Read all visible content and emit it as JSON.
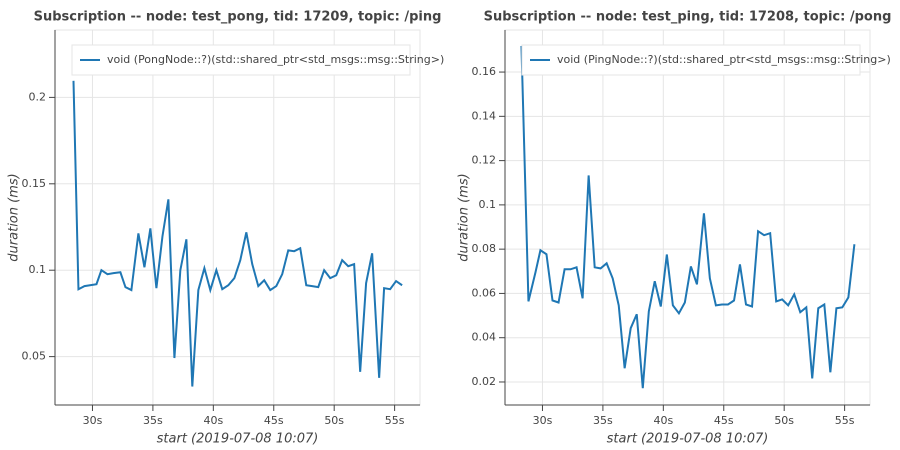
{
  "chart_data": [
    {
      "type": "line",
      "title": "Subscription -- node: test_pong, tid: 17209, topic: /ping",
      "xlabel": "start (2019-07-08 10:07)",
      "ylabel": "duration (ms)",
      "x": [
        28.43,
        28.84,
        29.34,
        30.33,
        30.74,
        31.24,
        31.74,
        32.31,
        32.73,
        33.22,
        33.8,
        34.3,
        34.79,
        35.29,
        35.79,
        36.28,
        36.78,
        37.27,
        37.77,
        38.26,
        38.76,
        39.26,
        39.75,
        40.25,
        40.74,
        41.24,
        41.74,
        42.23,
        42.73,
        43.22,
        43.72,
        44.21,
        44.71,
        45.21,
        45.7,
        46.2,
        46.69,
        47.19,
        47.69,
        48.18,
        48.68,
        49.17,
        49.67,
        50.17,
        50.66,
        51.16,
        51.65,
        52.15,
        52.64,
        53.14,
        53.72,
        54.13,
        54.63,
        55.12,
        55.62
      ],
      "series": [
        {
          "name": "void (PongNode::?)(std::shared_ptr<std_msgs::msg::String>)",
          "color": "#1f77b4",
          "values": [
            0.2096,
            0.089,
            0.0908,
            0.0919,
            0.1,
            0.0977,
            0.0983,
            0.0988,
            0.0902,
            0.0885,
            0.1213,
            0.1017,
            0.1242,
            0.0896,
            0.1196,
            0.141,
            0.0492,
            0.1,
            0.1179,
            0.0327,
            0.0885,
            0.1012,
            0.0885,
            0.1,
            0.089,
            0.0913,
            0.0954,
            0.1058,
            0.1219,
            0.1035,
            0.0908,
            0.0942,
            0.0885,
            0.0908,
            0.0977,
            0.1115,
            0.111,
            0.1127,
            0.0913,
            0.0908,
            0.0902,
            0.1,
            0.0954,
            0.0971,
            0.1058,
            0.1023,
            0.1035,
            0.0412,
            0.0925,
            0.1098,
            0.0377,
            0.0896,
            0.089,
            0.0937,
            0.0913
          ]
        }
      ],
      "xlim": [
        26.9,
        57.1
      ],
      "ylim": [
        0.022,
        0.239
      ],
      "xticks": [
        {
          "value": 30,
          "label": "30s"
        },
        {
          "value": 35,
          "label": "35s"
        },
        {
          "value": 40,
          "label": "40s"
        },
        {
          "value": 45,
          "label": "45s"
        },
        {
          "value": 50,
          "label": "50s"
        },
        {
          "value": 55,
          "label": "55s"
        }
      ],
      "yticks": [
        0.05,
        0.1,
        0.15,
        0.2
      ],
      "grid": true,
      "legend": "top_left"
    },
    {
      "type": "line",
      "title": "Subscription -- node: test_ping, tid: 17208, topic: /pong",
      "xlabel": "start (2019-07-08 10:07)",
      "ylabel": "duration (ms)",
      "x": [
        28.26,
        28.84,
        29.42,
        29.83,
        30.33,
        30.83,
        31.33,
        31.83,
        32.32,
        32.82,
        33.32,
        33.82,
        34.32,
        34.81,
        35.31,
        35.81,
        36.31,
        36.8,
        37.3,
        37.8,
        38.3,
        38.8,
        39.29,
        39.79,
        40.29,
        40.79,
        41.29,
        41.78,
        42.28,
        42.78,
        43.36,
        43.85,
        44.35,
        44.85,
        45.35,
        45.85,
        46.34,
        46.84,
        47.34,
        47.84,
        48.34,
        48.84,
        49.34,
        49.83,
        50.33,
        50.83,
        51.33,
        51.83,
        52.32,
        52.82,
        53.32,
        53.82,
        54.32,
        54.81,
        55.31,
        55.81
      ],
      "series": [
        {
          "name": "void (PingNode::?)(std::shared_ptr<std_msgs::msg::String>)",
          "color": "#1f77b4",
          "values": [
            0.1718,
            0.0564,
            0.0695,
            0.0795,
            0.0777,
            0.0568,
            0.0559,
            0.0709,
            0.0709,
            0.0718,
            0.0578,
            0.1133,
            0.0718,
            0.0713,
            0.0736,
            0.0668,
            0.0546,
            0.0262,
            0.0443,
            0.0506,
            0.0172,
            0.0519,
            0.0655,
            0.0541,
            0.0776,
            0.0546,
            0.051,
            0.0559,
            0.0722,
            0.0641,
            0.0962,
            0.0668,
            0.0546,
            0.055,
            0.055,
            0.0568,
            0.0731,
            0.055,
            0.0541,
            0.0881,
            0.0863,
            0.0872,
            0.0564,
            0.0573,
            0.0546,
            0.0596,
            0.0515,
            0.0537,
            0.0216,
            0.0533,
            0.055,
            0.0244,
            0.0533,
            0.0537,
            0.0582,
            0.0822
          ]
        }
      ],
      "xlim": [
        26.9,
        57.1
      ],
      "ylim": [
        0.0096,
        0.179
      ],
      "xticks": [
        {
          "value": 30,
          "label": "30s"
        },
        {
          "value": 35,
          "label": "35s"
        },
        {
          "value": 40,
          "label": "40s"
        },
        {
          "value": 45,
          "label": "45s"
        },
        {
          "value": 50,
          "label": "50s"
        },
        {
          "value": 55,
          "label": "55s"
        }
      ],
      "yticks": [
        0.02,
        0.04,
        0.06,
        0.08,
        0.1,
        0.12,
        0.14,
        0.16
      ],
      "grid": true,
      "legend": "top_left"
    }
  ]
}
